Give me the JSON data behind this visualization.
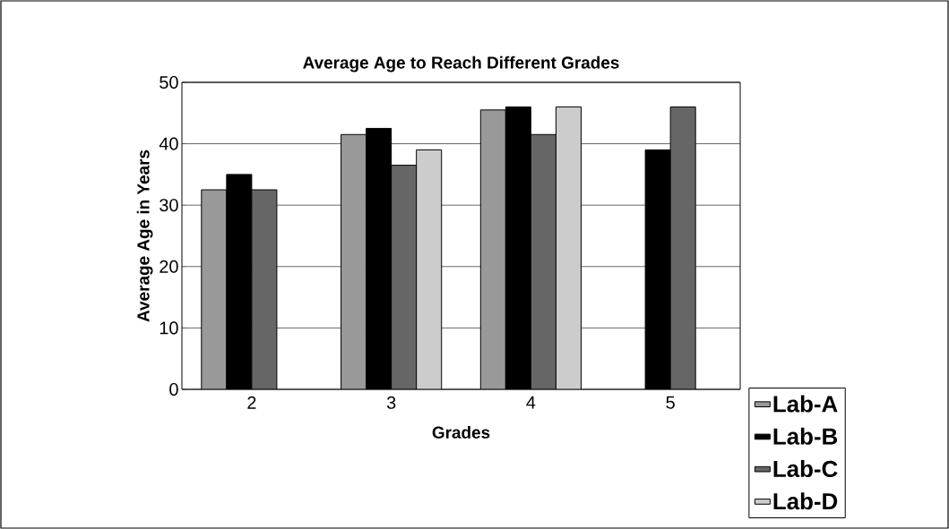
{
  "chart_data": {
    "type": "bar",
    "title": "Average Age to Reach Different Grades",
    "xlabel": "Grades",
    "ylabel": "Average Age in Years",
    "categories": [
      "2",
      "3",
      "4",
      "5"
    ],
    "series": [
      {
        "name": "Lab-A",
        "color": "#999999",
        "values": [
          32.5,
          41.5,
          45.5,
          null
        ]
      },
      {
        "name": "Lab-B",
        "color": "#000000",
        "values": [
          35,
          42.5,
          46,
          39
        ]
      },
      {
        "name": "Lab-C",
        "color": "#666666",
        "values": [
          32.5,
          36.5,
          41.5,
          46
        ]
      },
      {
        "name": "Lab-D",
        "color": "#cccccc",
        "values": [
          null,
          39,
          46,
          null
        ]
      }
    ],
    "ylim": [
      0,
      50
    ],
    "yticks": [
      0,
      10,
      20,
      30,
      40,
      50
    ],
    "grid": "y",
    "legend": "bottom right"
  }
}
